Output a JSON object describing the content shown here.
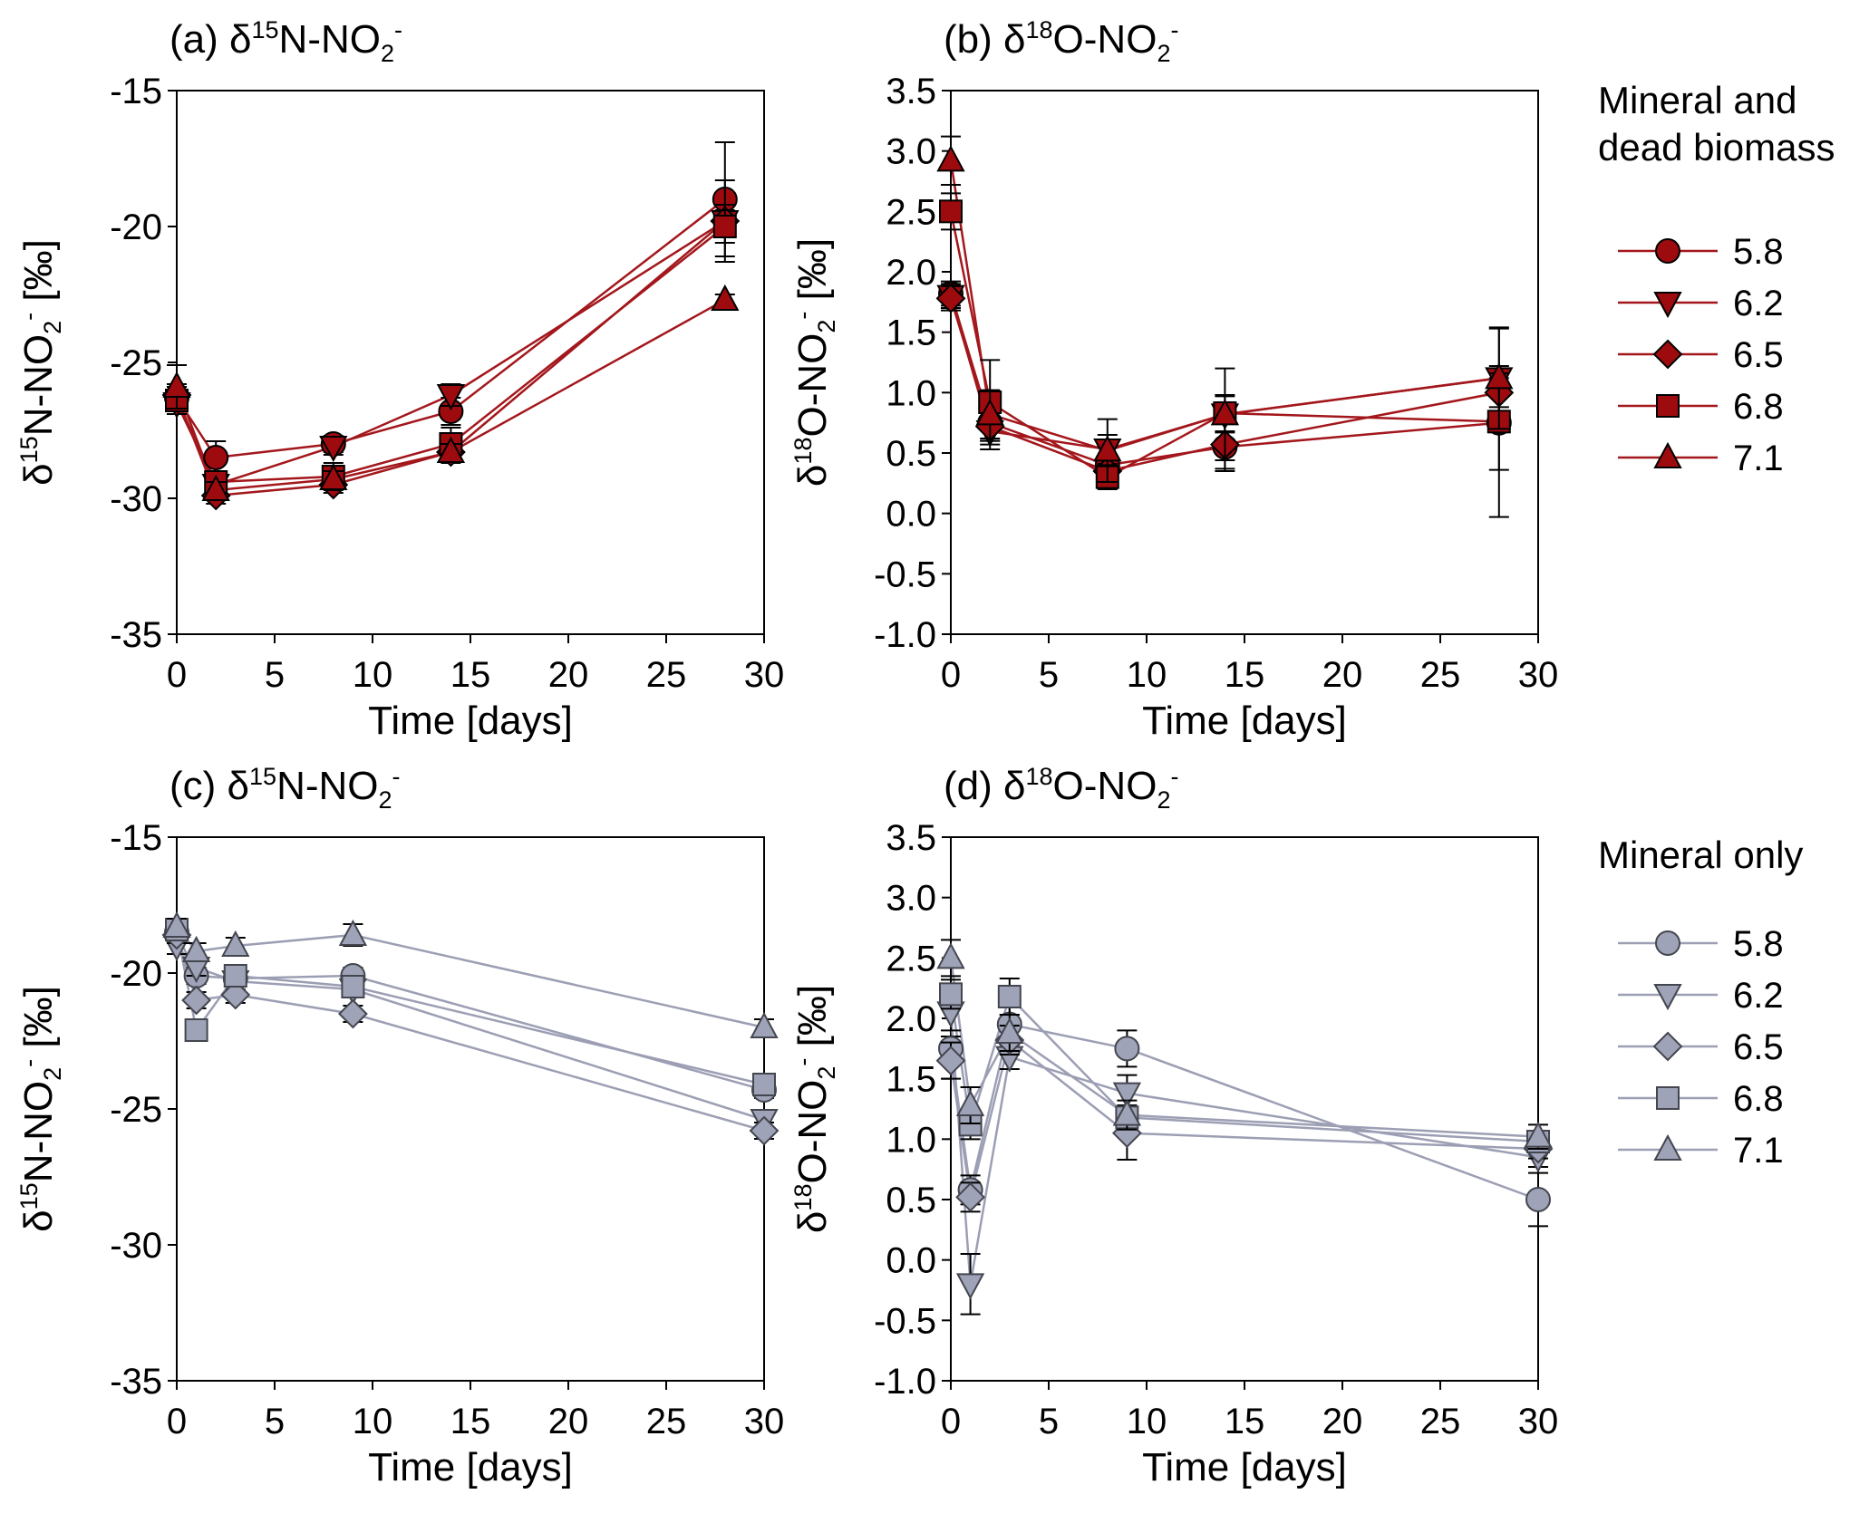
{
  "chart_data": [
    {
      "type": "line",
      "panel_id": "a",
      "title": {
        "prefix": "(a) ",
        "delta": "δ",
        "mass": "15",
        "species": "N-NO",
        "sub": "2",
        "charge": "-"
      },
      "ylabel": {
        "delta": "δ",
        "mass": "15",
        "species": "N-NO",
        "sub": "2",
        "charge": "-",
        "unit": " [‰]"
      },
      "xlabel": "Time [days]",
      "xlim": [
        0,
        30
      ],
      "ylim": [
        -35,
        -15
      ],
      "xticks": [
        "0",
        "5",
        "10",
        "15",
        "20",
        "25",
        "30"
      ],
      "yticks": [
        "-35",
        "-30",
        "-25",
        "-20",
        "-15"
      ],
      "ytick_values": [
        -35,
        -30,
        -25,
        -20,
        -15
      ],
      "x": [
        0,
        2,
        8,
        14,
        28
      ],
      "series": [
        {
          "name": "5.8",
          "marker": "circle",
          "values": [
            -26.3,
            -28.5,
            -28.0,
            -26.8,
            -19.0
          ],
          "err": [
            0.4,
            0.6,
            0.3,
            0.5,
            2.1
          ]
        },
        {
          "name": "6.2",
          "marker": "triangle-down",
          "values": [
            -26.5,
            -29.5,
            -28.1,
            -26.2,
            -19.8
          ],
          "err": [
            0.4,
            0.5,
            0.3,
            0.4,
            1.5
          ]
        },
        {
          "name": "6.5",
          "marker": "diamond",
          "values": [
            -26.2,
            -29.9,
            -29.5,
            -28.3,
            -19.8
          ],
          "err": [
            0.4,
            0.3,
            0.3,
            0.4,
            0.6
          ]
        },
        {
          "name": "6.8",
          "marker": "square",
          "values": [
            -26.4,
            -29.4,
            -29.2,
            -28.0,
            -20.0
          ],
          "err": [
            0.4,
            0.4,
            0.5,
            0.6,
            0.6
          ]
        },
        {
          "name": "7.1",
          "marker": "triangle-up",
          "values": [
            -25.9,
            -29.7,
            -29.3,
            -28.3,
            -22.7
          ],
          "err": [
            0.8,
            0.3,
            0.3,
            0.3,
            0.2
          ]
        }
      ]
    },
    {
      "type": "line",
      "panel_id": "b",
      "title": {
        "prefix": "(b) ",
        "delta": "δ",
        "mass": "18",
        "species": "O-NO",
        "sub": "2",
        "charge": "-"
      },
      "ylabel": {
        "delta": "δ",
        "mass": "18",
        "species": "O-NO",
        "sub": "2",
        "charge": "-",
        "unit": " [‰]"
      },
      "xlabel": "Time [days]",
      "xlim": [
        0,
        30
      ],
      "ylim": [
        -1.0,
        3.5
      ],
      "xticks": [
        "0",
        "5",
        "10",
        "15",
        "20",
        "25",
        "30"
      ],
      "yticks": [
        "-1.0",
        "-0.5",
        "0.0",
        "0.5",
        "1.0",
        "1.5",
        "2.0",
        "2.5",
        "3.0",
        "3.5"
      ],
      "ytick_values": [
        -1.0,
        -0.5,
        0.0,
        0.5,
        1.0,
        1.5,
        2.0,
        2.5,
        3.0,
        3.5
      ],
      "x": [
        0,
        2,
        8,
        14,
        28
      ],
      "series": [
        {
          "name": "5.8",
          "marker": "circle",
          "values": [
            1.82,
            0.75,
            0.4,
            0.55,
            0.75
          ],
          "err": [
            0.1,
            0.15,
            0.15,
            0.2,
            0.78
          ]
        },
        {
          "name": "6.2",
          "marker": "triangle-down",
          "values": [
            1.8,
            0.68,
            0.53,
            0.82,
            1.12
          ],
          "err": [
            0.1,
            0.15,
            0.12,
            0.15,
            0.1
          ]
        },
        {
          "name": "6.5",
          "marker": "diamond",
          "values": [
            1.78,
            0.72,
            0.35,
            0.57,
            1.0
          ],
          "err": [
            0.1,
            0.12,
            0.1,
            0.2,
            0.12
          ]
        },
        {
          "name": "6.8",
          "marker": "square",
          "values": [
            2.5,
            0.92,
            0.3,
            0.83,
            0.76
          ],
          "err": [
            0.15,
            0.35,
            0.1,
            0.15,
            0.4
          ]
        },
        {
          "name": "7.1",
          "marker": "triangle-up",
          "values": [
            2.92,
            0.82,
            0.52,
            0.82,
            1.12
          ],
          "err": [
            0.2,
            0.2,
            0.26,
            0.38,
            0.42
          ]
        }
      ]
    },
    {
      "type": "line",
      "panel_id": "c",
      "title": {
        "prefix": "(c) ",
        "delta": "δ",
        "mass": "15",
        "species": "N-NO",
        "sub": "2",
        "charge": "-"
      },
      "ylabel": {
        "delta": "δ",
        "mass": "15",
        "species": "N-NO",
        "sub": "2",
        "charge": "-",
        "unit": " [‰]"
      },
      "xlabel": "Time [days]",
      "xlim": [
        0,
        30
      ],
      "ylim": [
        -35,
        -15
      ],
      "xticks": [
        "0",
        "5",
        "10",
        "15",
        "20",
        "25",
        "30"
      ],
      "yticks": [
        "-35",
        "-30",
        "-25",
        "-20",
        "-15"
      ],
      "ytick_values": [
        -35,
        -30,
        -25,
        -20,
        -15
      ],
      "x": [
        0,
        1,
        3,
        9,
        30
      ],
      "series": [
        {
          "name": "5.8",
          "marker": "circle",
          "values": [
            -18.5,
            -20.1,
            -20.2,
            -20.1,
            -24.3
          ],
          "err": [
            0.2,
            0.3,
            0.3,
            0.3,
            0.3
          ]
        },
        {
          "name": "6.2",
          "marker": "triangle-down",
          "values": [
            -19.0,
            -19.8,
            -20.3,
            -20.6,
            -25.4
          ],
          "err": [
            0.3,
            0.3,
            0.3,
            0.3,
            0.3
          ]
        },
        {
          "name": "6.5",
          "marker": "diamond",
          "values": [
            -18.6,
            -21.0,
            -20.8,
            -21.5,
            -25.8
          ],
          "err": [
            0.3,
            0.3,
            0.3,
            0.3,
            0.3
          ]
        },
        {
          "name": "6.8",
          "marker": "square",
          "values": [
            -18.4,
            -22.1,
            -20.1,
            -20.5,
            -24.1
          ],
          "err": [
            0.3,
            0.3,
            0.4,
            0.3,
            0.3
          ]
        },
        {
          "name": "7.1",
          "marker": "triangle-up",
          "values": [
            -18.3,
            -19.2,
            -19.0,
            -18.6,
            -22.0
          ],
          "err": [
            0.3,
            0.3,
            0.3,
            0.4,
            0.3
          ]
        }
      ]
    },
    {
      "type": "line",
      "panel_id": "d",
      "title": {
        "prefix": "(d)  ",
        "delta": "δ",
        "mass": "18",
        "species": "O-NO",
        "sub": "2",
        "charge": "-"
      },
      "ylabel": {
        "delta": "δ",
        "mass": "18",
        "species": "O-NO",
        "sub": "2",
        "charge": "-",
        "unit": " [‰]"
      },
      "xlabel": "Time [days]",
      "xlim": [
        0,
        30
      ],
      "ylim": [
        -1.0,
        3.5
      ],
      "xticks": [
        "0",
        "5",
        "10",
        "15",
        "20",
        "25",
        "30"
      ],
      "yticks": [
        "-1.0",
        "-0.5",
        "0.0",
        "0.5",
        "1.0",
        "1.5",
        "2.0",
        "2.5",
        "3.0",
        "3.5"
      ],
      "ytick_values": [
        -1.0,
        -0.5,
        0.0,
        0.5,
        1.0,
        1.5,
        2.0,
        2.5,
        3.0,
        3.5
      ],
      "x": [
        0,
        1,
        3,
        9,
        30
      ],
      "series": [
        {
          "name": "5.8",
          "marker": "circle",
          "values": [
            1.75,
            0.58,
            1.95,
            1.75,
            0.5
          ],
          "err": [
            0.1,
            0.12,
            0.15,
            0.15,
            0.22
          ]
        },
        {
          "name": "6.2",
          "marker": "triangle-down",
          "values": [
            2.05,
            -0.2,
            1.68,
            1.38,
            0.85
          ],
          "err": [
            0.15,
            0.25,
            0.1,
            0.15,
            0.08
          ]
        },
        {
          "name": "6.5",
          "marker": "diamond",
          "values": [
            1.65,
            0.52,
            1.82,
            1.05,
            0.92
          ],
          "err": [
            0.15,
            0.12,
            0.12,
            0.22,
            0.08
          ]
        },
        {
          "name": "6.8",
          "marker": "square",
          "values": [
            2.2,
            1.12,
            2.18,
            1.18,
            0.98
          ],
          "err": [
            0.12,
            0.12,
            0.15,
            0.1,
            0.08
          ]
        },
        {
          "name": "7.1",
          "marker": "triangle-up",
          "values": [
            2.5,
            1.28,
            1.88,
            1.2,
            1.02
          ],
          "err": [
            0.15,
            0.15,
            0.15,
            0.12,
            0.1
          ]
        }
      ]
    }
  ],
  "legends": [
    {
      "title_lines": [
        "Mineral and",
        "dead biomass"
      ],
      "entries": [
        "5.8",
        "6.2",
        "6.5",
        "6.8",
        "7.1"
      ]
    },
    {
      "title_lines": [
        "Mineral only"
      ],
      "entries": [
        "5.8",
        "6.2",
        "6.5",
        "6.8",
        "7.1"
      ]
    }
  ],
  "colors": {
    "red_fill": "#9e0b0f",
    "red_line": "#a3171c",
    "grey_fill": "#9fa3b8",
    "grey_line": "#9c9fb4",
    "axis": "#000000"
  }
}
